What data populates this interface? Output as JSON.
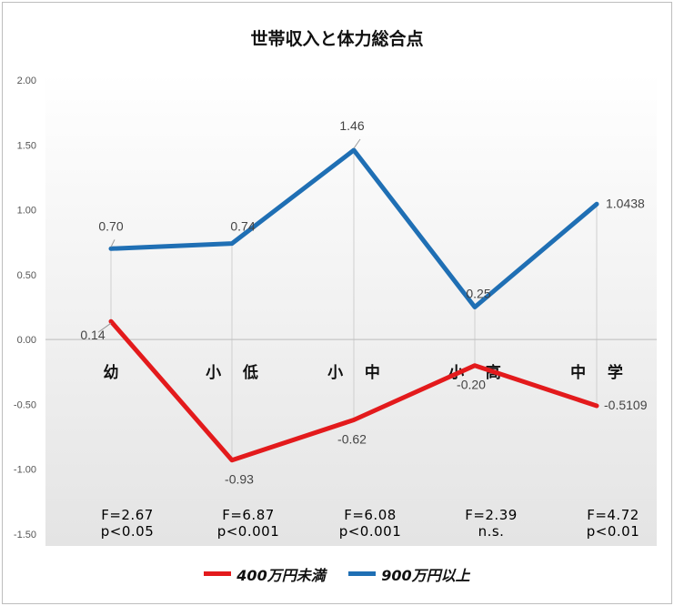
{
  "chart_data": {
    "type": "line",
    "title": "世帯収入と体力総合点",
    "categories": [
      "幼",
      "小 低",
      "小 中",
      "小 高",
      "中 学"
    ],
    "ylim": [
      -1.5,
      2.0
    ],
    "yticks": [
      "2.00",
      "1.50",
      "1.00",
      "0.50",
      "0.00",
      "-0.50",
      "-1.00",
      "-1.50"
    ],
    "ytick_values": [
      2.0,
      1.5,
      1.0,
      0.5,
      0.0,
      -0.5,
      -1.0,
      -1.5
    ],
    "grid": false,
    "legend_position": "bottom",
    "series": [
      {
        "name": "400万円未満",
        "color": "#e31a1c",
        "values": [
          0.14,
          -0.93,
          -0.62,
          -0.2,
          -0.5109
        ],
        "labels": [
          "0.14",
          "-0.93",
          "-0.62",
          "-0.20",
          "-0.5109"
        ]
      },
      {
        "name": "900万円以上",
        "color": "#1f6fb4",
        "values": [
          0.7,
          0.74,
          1.46,
          0.25,
          1.0438
        ],
        "labels": [
          "0.70",
          "0.74",
          "1.46",
          "0.25",
          "1.0438"
        ]
      }
    ],
    "stats": [
      {
        "f": "F=2.67",
        "p": "p<0.05"
      },
      {
        "f": "F=6.87",
        "p": "p<0.001"
      },
      {
        "f": "F=6.08",
        "p": "p<0.001"
      },
      {
        "f": "F=2.39",
        "p": "n.s."
      },
      {
        "f": "F=4.72",
        "p": "p<0.01"
      }
    ]
  }
}
